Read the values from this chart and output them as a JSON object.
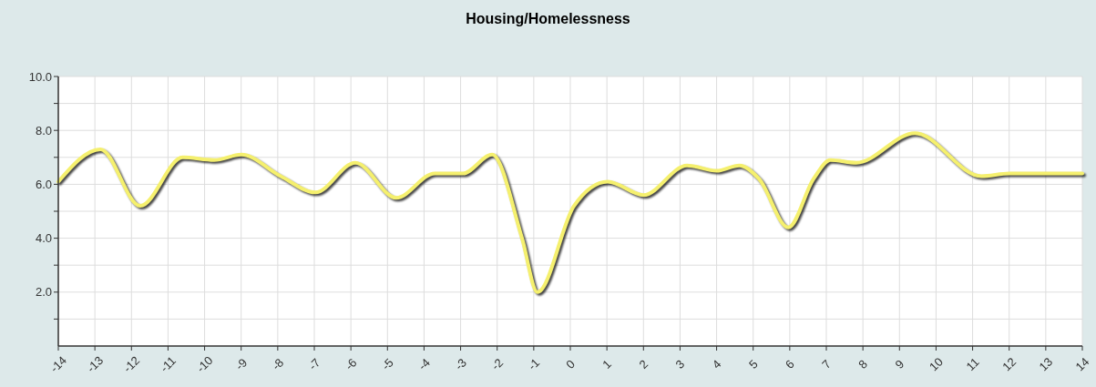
{
  "chart_data": {
    "type": "line",
    "title": "Housing/Homelessness",
    "series": [
      {
        "color": "#f5f06e",
        "x": [
          -14,
          -12.85,
          -11.76,
          -10.6,
          -9.74,
          -9.0,
          -7.92,
          -6.97,
          -5.88,
          -4.76,
          -3.71,
          -2.94,
          -2.14,
          -1.32,
          -0.9,
          0.1,
          1.02,
          2.0,
          3.19,
          4.0,
          4.62,
          5.16,
          5.96,
          6.65,
          7.11,
          7.82,
          9.42,
          11.24,
          12.0,
          14
        ],
        "values": [
          6.1,
          7.3,
          5.2,
          7.0,
          6.9,
          7.1,
          6.3,
          5.7,
          6.8,
          5.5,
          6.4,
          6.4,
          7.1,
          4.0,
          2.0,
          5.2,
          6.1,
          5.6,
          6.7,
          6.5,
          6.7,
          6.2,
          4.4,
          6.2,
          6.9,
          6.8,
          7.9,
          6.3,
          6.4,
          6.4
        ]
      }
    ],
    "xlim": [
      -14,
      14
    ],
    "xticks": [
      -14,
      -13,
      -12,
      -11,
      -10,
      -9,
      -8,
      -7,
      -6,
      -5,
      -4,
      -3,
      -2,
      -1,
      0,
      1,
      2,
      3,
      4,
      5,
      6,
      7,
      8,
      9,
      10,
      11,
      12,
      13,
      14
    ],
    "ylim": [
      0,
      10
    ],
    "yticks": [
      {
        "value": 1,
        "label": null
      },
      {
        "value": 2,
        "label": "2.0"
      },
      {
        "value": 3,
        "label": null
      },
      {
        "value": 4,
        "label": "4.0"
      },
      {
        "value": 5,
        "label": null
      },
      {
        "value": 6,
        "label": "6.0"
      },
      {
        "value": 7,
        "label": null
      },
      {
        "value": 8,
        "label": "8.0"
      },
      {
        "value": 9,
        "label": null
      },
      {
        "value": 10,
        "label": "10.0"
      }
    ],
    "grid": true,
    "marker": "none",
    "line_style": "solid"
  }
}
